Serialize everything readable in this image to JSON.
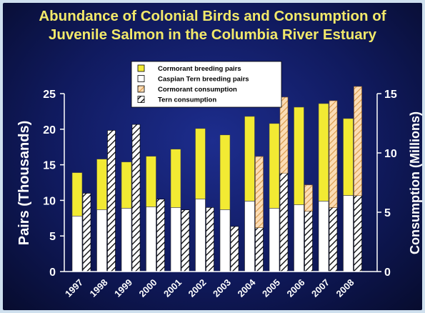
{
  "chart_data": {
    "type": "bar",
    "title_lines": [
      "Abundance of Colonial Birds and Consumption of",
      "Juvenile Salmon in the Columbia River Estuary"
    ],
    "ylabel_left": "Pairs (Thousands)",
    "ylabel_right": "Consumption (Millions)",
    "ylim_left": [
      0,
      25
    ],
    "ylim_right": [
      0,
      15
    ],
    "yticks_left": [
      "0",
      "5",
      "10",
      "15",
      "20",
      "25"
    ],
    "yticks_right": [
      "0",
      "5",
      "10",
      "15"
    ],
    "categories": [
      "1997",
      "1998",
      "1999",
      "2000",
      "2001",
      "2002",
      "2003",
      "2004",
      "2005",
      "2006",
      "2007",
      "2008"
    ],
    "legend": [
      {
        "label": "Cormorant breeding pairs",
        "key": "cormorant_pairs"
      },
      {
        "label": "Caspian Tern breeding pairs",
        "key": "tern_pairs"
      },
      {
        "label": "Cormorant consumption",
        "key": "cormorant_consumption"
      },
      {
        "label": "Tern consumption",
        "key": "tern_consumption"
      }
    ],
    "series": {
      "tern_pairs_thousands": [
        7.8,
        8.7,
        8.9,
        9.1,
        9.0,
        10.2,
        8.7,
        9.9,
        8.9,
        9.4,
        9.9,
        10.7
      ],
      "cormorant_pairs_thousands": [
        6.1,
        7.1,
        6.5,
        7.1,
        8.2,
        9.9,
        10.5,
        11.9,
        11.9,
        13.7,
        13.7,
        10.8
      ],
      "tern_consumption_millions": [
        6.6,
        11.9,
        12.4,
        6.1,
        5.2,
        5.4,
        3.8,
        3.7,
        8.3,
        5.1,
        5.4,
        6.4
      ],
      "cormorant_consumption_millions": [
        0,
        0,
        0,
        0,
        0,
        0,
        0,
        6.0,
        6.4,
        2.2,
        9.0,
        9.2
      ]
    },
    "colors": {
      "cormorant_pairs": "#f2ea33",
      "tern_pairs": "#ffffff",
      "cormorant_hatch_bg": "#fcdcb4",
      "cormorant_hatch_line": "#d89848",
      "tern_hatch_bg": "#ffffff",
      "tern_hatch_line": "#000000",
      "title": "#f2e96a",
      "axis_text": "#ffffff",
      "background": "#121c66"
    }
  }
}
